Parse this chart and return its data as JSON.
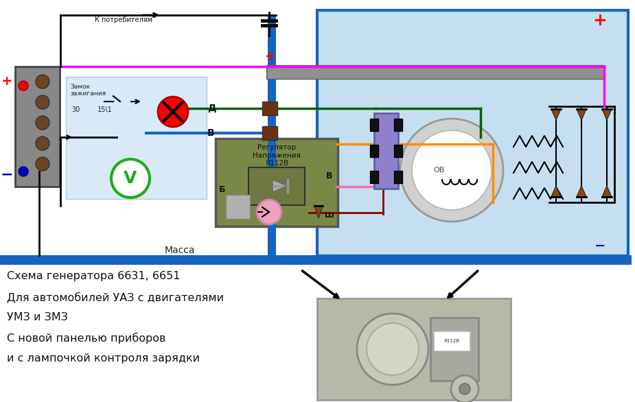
{
  "bg_color": "#ffffff",
  "light_blue": "#c5dff0",
  "blue_line": "#1565c0",
  "gray_bus": "#909090",
  "magenta": "#ff00ff",
  "green_wire": "#006400",
  "orange_wire": "#ff8c00",
  "pink_wire": "#ff69b4",
  "description_lines": [
    "Схема генератора 6631, 6651",
    "Для автомобилей УАЗ с двигателями",
    "УМЗ и ЗМЗ",
    "С новой панелью приборов",
    "и с лампочкой контроля зарядки"
  ],
  "reg_label": "Регулятор\nНапряжения\nЯ112В",
  "consumers_text": "К потребителям",
  "massa_text": "Масса",
  "zamok_text": "Замок\nзажигания",
  "D_label": "Д",
  "B_label": "В",
  "Б_label": "Б",
  "Ш_label": "Ш",
  "OB_label": "ОВ"
}
